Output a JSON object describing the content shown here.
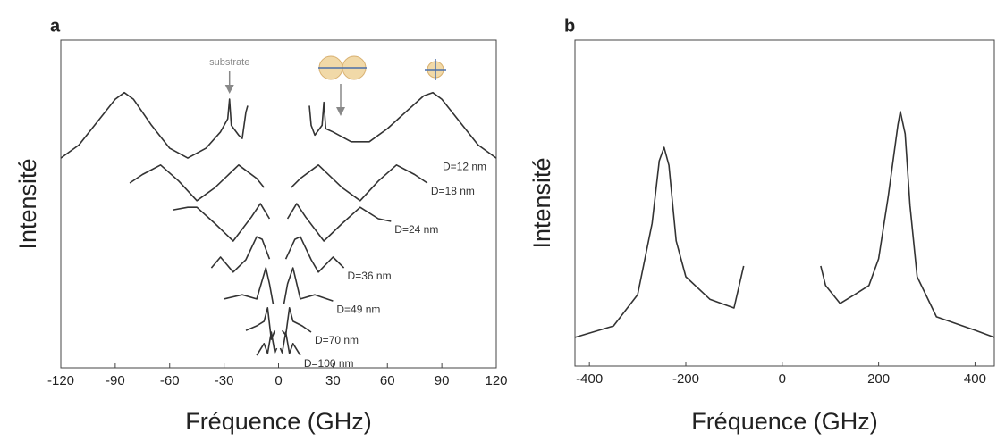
{
  "chart_data": [
    {
      "type": "line",
      "panel_label": "a",
      "xlabel": "Fréquence (GHz)",
      "ylabel": "Intensité",
      "xlim": [
        -120,
        120
      ],
      "ylim": [
        0,
        100
      ],
      "xticks": [
        -120,
        -90,
        -60,
        -30,
        0,
        30,
        60,
        90,
        120
      ],
      "annotations": [
        {
          "text": "substrate",
          "x": -27
        }
      ],
      "series": [
        {
          "name": "D=12 nm",
          "color": "#333333",
          "x": [
            -120,
            -110,
            -100,
            -90,
            -85,
            -80,
            -70,
            -60,
            -50,
            -40,
            -32,
            -28,
            -27,
            -26,
            -22,
            -20,
            -18,
            -17,
            0,
            17,
            18,
            20,
            24,
            25,
            26,
            30,
            40,
            50,
            60,
            70,
            80,
            85,
            90,
            100,
            110,
            120
          ],
          "values": [
            64,
            68,
            75,
            82,
            84,
            82,
            74,
            67,
            64,
            67,
            72,
            76,
            82,
            74,
            71,
            70,
            78,
            80,
            null,
            80,
            74,
            71,
            74,
            81,
            73,
            72,
            69,
            69,
            73,
            78,
            83,
            84,
            82,
            75,
            68,
            64
          ]
        },
        {
          "name": "D=18 nm",
          "color": "#333333",
          "x": [
            -82,
            -75,
            -65,
            -55,
            -45,
            -35,
            -22,
            -12,
            -8,
            0,
            7,
            12,
            22,
            35,
            45,
            55,
            65,
            75,
            82
          ],
          "values": [
            56.4,
            59,
            61.9,
            57,
            51,
            55,
            61.9,
            57.8,
            55,
            null,
            55,
            57.8,
            61.9,
            55,
            51,
            57,
            61.9,
            59,
            56.4
          ]
        },
        {
          "name": "D=24 nm",
          "color": "#333333",
          "x": [
            -58,
            -50,
            -45,
            -35,
            -25,
            -15,
            -10,
            -5,
            0,
            5,
            10,
            15,
            25,
            35,
            45,
            55,
            62
          ],
          "values": [
            48.2,
            49,
            49,
            44,
            38.7,
            46,
            50.1,
            45.5,
            null,
            45.5,
            50.1,
            46,
            38.7,
            44,
            49,
            45.5,
            44.7
          ]
        },
        {
          "name": "D=36 nm",
          "color": "#333333",
          "x": [
            -37,
            -32,
            -25,
            -18,
            -12,
            -9,
            -5,
            0,
            4,
            9,
            12,
            18,
            22,
            30,
            36
          ],
          "values": [
            30.5,
            33.8,
            29.2,
            33,
            40,
            39.2,
            33.2,
            null,
            33.2,
            39.2,
            40,
            33,
            29.2,
            33.8,
            30.5
          ]
        },
        {
          "name": "D=49 nm",
          "color": "#333333",
          "x": [
            -30,
            -20,
            -12,
            -7,
            -5,
            -3,
            0,
            3,
            5,
            8,
            12,
            20,
            30
          ],
          "values": [
            21,
            22.3,
            21,
            30.5,
            25.6,
            19.6,
            null,
            19.6,
            25.6,
            30.5,
            21,
            22.3,
            20.4
          ]
        },
        {
          "name": "D=70 nm",
          "color": "#333333",
          "x": [
            -18,
            -12,
            -8,
            -6,
            -4,
            -2,
            0,
            2,
            4,
            6,
            8,
            13,
            18
          ],
          "values": [
            11.4,
            12.8,
            14.2,
            18.3,
            8.7,
            11.4,
            null,
            11.4,
            10,
            18.3,
            14.2,
            12.8,
            10.9
          ]
        },
        {
          "name": "D=100 nm",
          "color": "#333333",
          "x": [
            -12,
            -8,
            -6,
            -4,
            -2,
            -1,
            0,
            1,
            2,
            4,
            6,
            8,
            12
          ],
          "values": [
            3.8,
            7.4,
            4.4,
            10.9,
            4.6,
            6,
            null,
            6,
            4.6,
            10.9,
            4.4,
            7.4,
            3.8
          ]
        }
      ]
    },
    {
      "type": "line",
      "panel_label": "b",
      "xlabel": "Fréquence (GHz)",
      "ylabel": "Intensité",
      "xlim": [
        -430,
        440
      ],
      "ylim": [
        0,
        100
      ],
      "xticks": [
        -400,
        -200,
        0,
        200,
        400
      ],
      "series": [
        {
          "color": "#333333",
          "x": [
            -430,
            -350,
            -300,
            -270,
            -255,
            -245,
            -235,
            -220,
            -200,
            -150,
            -100,
            -80,
            0,
            80,
            90,
            120,
            150,
            180,
            200,
            220,
            240,
            245,
            255,
            265,
            280,
            320,
            400,
            440
          ],
          "values": [
            8.8,
            12.3,
            21.9,
            43.8,
            63,
            67.1,
            61.6,
            38.4,
            27.4,
            20.5,
            17.8,
            30.7,
            null,
            30.7,
            24.7,
            19.2,
            21.9,
            24.7,
            32.9,
            52.1,
            74,
            78.1,
            71.2,
            49.3,
            27.4,
            15.1,
            11,
            8.8
          ]
        }
      ]
    }
  ]
}
